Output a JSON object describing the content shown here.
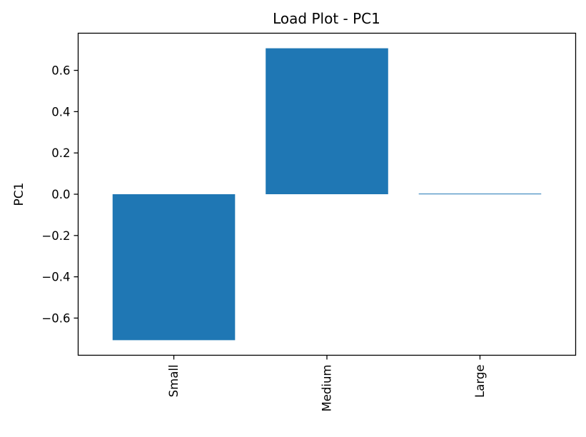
{
  "chart_data": {
    "type": "bar",
    "title": "Load Plot - PC1",
    "xlabel": "",
    "ylabel": "PC1",
    "categories": [
      "Small",
      "Medium",
      "Large"
    ],
    "values": [
      -0.707,
      0.707,
      0.003
    ],
    "ylim": [
      -0.78,
      0.78
    ],
    "yticks": [
      -0.6,
      -0.4,
      -0.2,
      0.0,
      0.2,
      0.4,
      0.6
    ],
    "ytick_labels": [
      "−0.6",
      "−0.4",
      "−0.2",
      "0.0",
      "0.2",
      "0.4",
      "0.6"
    ],
    "grid": false,
    "bar_color": "#1f77b4",
    "xtick_rotation": "vertical"
  }
}
